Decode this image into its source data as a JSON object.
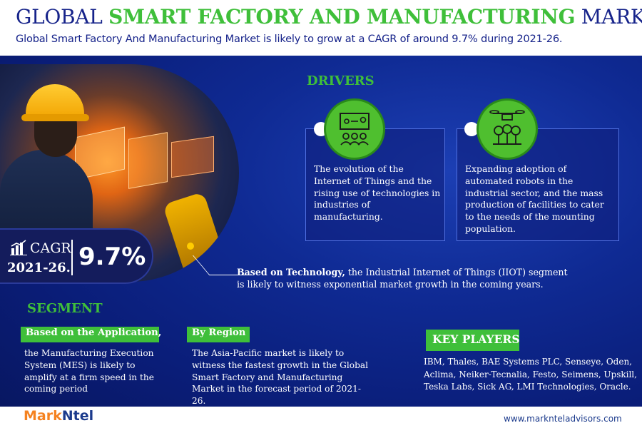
{
  "header": {
    "title_part1": "GLOBAL ",
    "title_highlight": "SMART FACTORY AND MANUFACTURING",
    "title_part2": " MARKET",
    "subtitle": "Global Smart Factory And Manufacturing Market is likely to grow at a CAGR of around 9.7% during 2021-26."
  },
  "cagr": {
    "label": "CAGR",
    "years": "2021-26.",
    "value": "9.7%"
  },
  "drivers": {
    "title": "DRIVERS",
    "items": [
      {
        "icon": "presentation-team-icon",
        "text": "The evolution of the Internet of Things and the rising use of technologies in industries of manufacturing."
      },
      {
        "icon": "drone-robots-icon",
        "text": "Expanding adoption of automated robots in the industrial sector, and the mass production of facilities to cater to the needs of the mounting population."
      }
    ]
  },
  "technology": {
    "label": "Based on Technology,",
    "text": " the Industrial Internet of Things (IIOT) segment is likely to witness exponential market growth in the coming years."
  },
  "segment": {
    "title": "SEGMENT",
    "application_label": "Based on the Application,",
    "application_text": "the Manufacturing Execution System (MES) is likely to amplify at a firm speed in the coming period",
    "region_label": "By Region",
    "region_text": "The Asia-Pacific market is likely to witness the fastest growth in the Global Smart Factory and Manufacturing Market in the forecast period of 2021-26."
  },
  "key_players": {
    "title": "KEY PLAYERS",
    "text": "IBM, Thales, BAE Systems PLC, Senseye, Oden, Aclima, Neiker-Tecnalia, Festo, Seimens, Upskill, Teska Labs, Sick AG, LMI Technologies, Oracle."
  },
  "footer": {
    "logo_part1": "Mark",
    "logo_part2": "Ntel",
    "website": "www.marknteladvisors.com"
  },
  "colors": {
    "accent_green": "#3fbf3a",
    "navy": "#16238a",
    "background_blue": "#0f2a93",
    "logo_orange": "#f58220"
  }
}
